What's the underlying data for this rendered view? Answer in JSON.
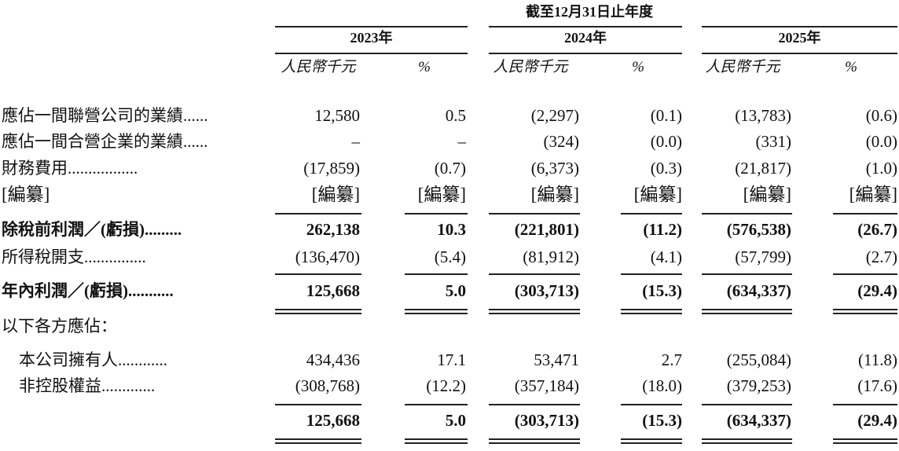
{
  "header": {
    "period": "截至12月31日止年度",
    "years": [
      "2023年",
      "2024年",
      "2025年"
    ],
    "units": [
      "人民幣千元",
      "%",
      "人民幣千元",
      "%",
      "人民幣千元",
      "%"
    ]
  },
  "rows": [
    {
      "label": "應佔一間聯營公司的業績......",
      "values": [
        "12,580",
        "0.5",
        "(2,297)",
        "(0.1)",
        "(13,783)",
        "(0.6)"
      ]
    },
    {
      "label": "應佔一間合營企業的業績......",
      "values": [
        "–",
        "–",
        "(324)",
        "(0.0)",
        "(331)",
        "(0.0)"
      ]
    },
    {
      "label": "財務費用.................",
      "values": [
        "(17,859)",
        "(0.7)",
        "(6,373)",
        "(0.3)",
        "(21,817)",
        "(1.0)"
      ]
    },
    {
      "label": "[編纂]",
      "values": [
        "[編纂]",
        "[編纂]",
        "[編纂]",
        "[編纂]",
        "[編纂]",
        "[編纂]"
      ]
    },
    {
      "label": "除稅前利潤／(虧損).........",
      "values": [
        "262,138",
        "10.3",
        "(221,801)",
        "(11.2)",
        "(576,538)",
        "(26.7)"
      ]
    },
    {
      "label": "所得稅開支...............",
      "values": [
        "(136,470)",
        "(5.4)",
        "(81,912)",
        "(4.1)",
        "(57,799)",
        "(2.7)"
      ]
    },
    {
      "label": "年內利潤／(虧損)...........",
      "values": [
        "125,668",
        "5.0",
        "(303,713)",
        "(15.3)",
        "(634,337)",
        "(29.4)"
      ]
    },
    {
      "label": "以下各方應佔："
    },
    {
      "label": "本公司擁有人............",
      "values": [
        "434,436",
        "17.1",
        "53,471",
        "2.7",
        "(255,084)",
        "(11.8)"
      ]
    },
    {
      "label": "非控股權益.............",
      "values": [
        "(308,768)",
        "(12.2)",
        "(357,184)",
        "(18.0)",
        "(379,253)",
        "(17.6)"
      ]
    },
    {
      "values": [
        "125,668",
        "5.0",
        "(303,713)",
        "(15.3)",
        "(634,337)",
        "(29.4)"
      ]
    }
  ]
}
